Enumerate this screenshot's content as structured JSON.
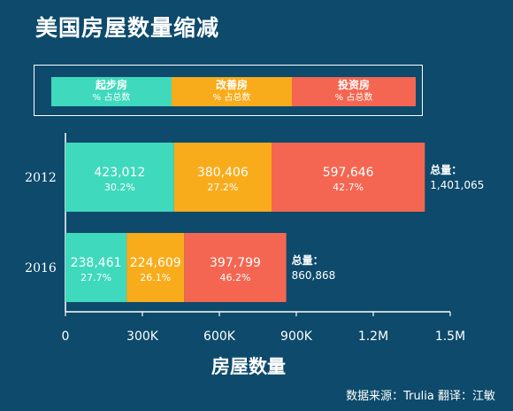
{
  "title": "美国房屋数量缩减",
  "legend": [
    {
      "label": "起步房",
      "sub": "% 占总数",
      "color": "#3fd9bd"
    },
    {
      "label": "改善房",
      "sub": "%  占总数",
      "color": "#f9ac1b"
    },
    {
      "label": "投资房",
      "sub": "% 占总数",
      "color": "#f46651"
    }
  ],
  "source_note": "数据来源：Trulia        翻译：江敏",
  "chart_data": {
    "type": "bar",
    "orientation": "horizontal",
    "stacked": true,
    "title": "美国房屋数量缩减",
    "xlabel": "房屋数量",
    "ylabel": "",
    "categories": [
      "2012",
      "2016"
    ],
    "xlim": [
      0,
      1500000
    ],
    "x_ticks": [
      0,
      300000,
      600000,
      900000,
      1200000,
      1500000
    ],
    "x_tick_labels": [
      "0",
      "300K",
      "600K",
      "900K",
      "1.2M",
      "1.5M"
    ],
    "series": [
      {
        "name": "起步房",
        "color": "#3fd9bd",
        "values": [
          423012,
          238461
        ],
        "value_labels": [
          "423,012",
          "238,461"
        ],
        "pct_labels": [
          "30.2%",
          "27.7%"
        ]
      },
      {
        "name": "改善房",
        "color": "#f9ac1b",
        "values": [
          380406,
          224609
        ],
        "value_labels": [
          "380,406",
          "224,609"
        ],
        "pct_labels": [
          "27.2%",
          "26.1%"
        ]
      },
      {
        "name": "投资房",
        "color": "#f46651",
        "values": [
          597646,
          397799
        ],
        "value_labels": [
          "597,646",
          "397,799"
        ],
        "pct_labels": [
          "42.7%",
          "46.2%"
        ]
      }
    ],
    "totals": [
      {
        "label": "总量：",
        "value": "1,401,065"
      },
      {
        "label": "总量：",
        "value": "860,868"
      }
    ],
    "grid": false,
    "legend_position": "top"
  }
}
